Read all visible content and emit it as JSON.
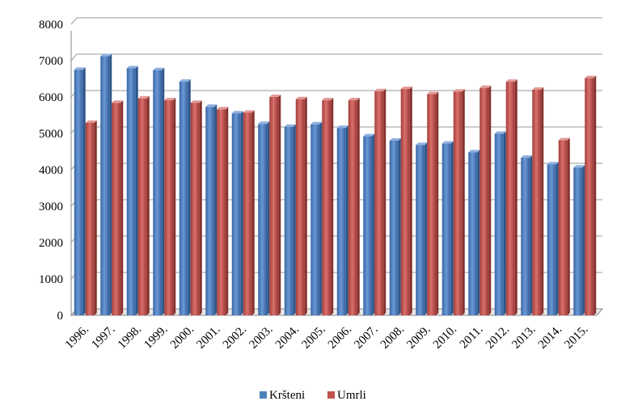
{
  "chart_data": {
    "type": "bar",
    "title": "",
    "xlabel": "",
    "ylabel": "",
    "ylim": [
      0,
      8000
    ],
    "yticks": [
      0,
      1000,
      2000,
      3000,
      4000,
      5000,
      6000,
      7000,
      8000
    ],
    "grid": true,
    "legend_position": "bottom",
    "categories": [
      "1996.",
      "1997.",
      "1998.",
      "1999.",
      "2000.",
      "2001.",
      "2002.",
      "2003.",
      "2004.",
      "2005.",
      "2006.",
      "2007.",
      "2008.",
      "2009.",
      "2010.",
      "2011.",
      "2012.",
      "2013.",
      "2014.",
      "2015."
    ],
    "series": [
      {
        "name": "Kršteni",
        "color": "#4F81BD",
        "values": [
          6750,
          7120,
          6790,
          6740,
          6420,
          5730,
          5550,
          5260,
          5180,
          5250,
          5150,
          4920,
          4800,
          4680,
          4720,
          4480,
          4990,
          4330,
          4150,
          4060
        ]
      },
      {
        "name": "Umrli",
        "color": "#C0504D",
        "values": [
          5290,
          5840,
          5960,
          5910,
          5840,
          5660,
          5570,
          6000,
          5940,
          5910,
          5910,
          6160,
          6220,
          6080,
          6150,
          6250,
          6420,
          6200,
          4810,
          6520
        ]
      }
    ]
  }
}
